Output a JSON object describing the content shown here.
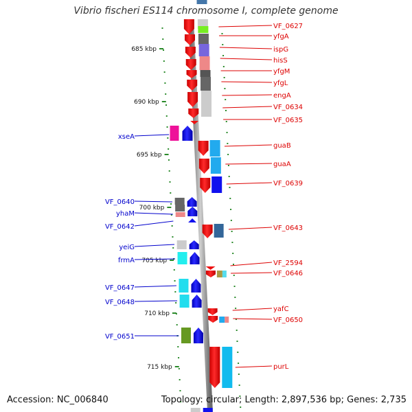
{
  "title": "Vibrio fischeri ES114 chromosome I, complete genome",
  "accession": "Accession: NC_006840",
  "topology": "Topology: circular; Length: 2,897,536 bp; Genes: 2,735",
  "scale_labels": [
    "685 kbp",
    "690 kbp",
    "695 kbp",
    "700 kbp",
    "705 kbp",
    "710 kbp",
    "715 kbp"
  ],
  "right_genes": [
    "VF_0627",
    "yfgA",
    "ispG",
    "hisS",
    "yfgM",
    "yfgL",
    "engA",
    "VF_0634",
    "VF_0635",
    "guaB",
    "guaA",
    "VF_0639",
    "VF_0643",
    "VF_2594",
    "VF_0646",
    "yafC",
    "VF_0650",
    "purL"
  ],
  "left_genes": [
    "xseA",
    "VF_0640",
    "yhaM",
    "VF_0642",
    "yeiG",
    "frmA",
    "VF_0647",
    "VF_0648",
    "VF_0651"
  ],
  "colors": {
    "right_label": "#dd0000",
    "left_label": "#0000cc",
    "forward_strand": "#ee1111",
    "reverse_strand": "#1111ee",
    "scale_tick": "#2a8a2a",
    "backbone": "#999999"
  }
}
